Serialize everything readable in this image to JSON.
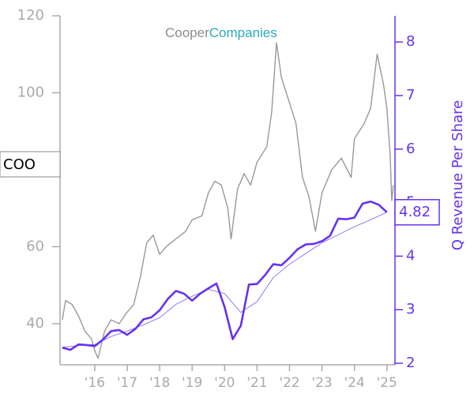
{
  "chart_data": {
    "type": "line",
    "logo": [
      "Cooper",
      "Companies"
    ],
    "annotation": "COO",
    "y2label": "Q Revenue Per Share",
    "xlim": [
      2014.93,
      2025.25
    ],
    "xticks": [
      {
        "value": 2016,
        "label": "'16"
      },
      {
        "value": 2017,
        "label": "'17"
      },
      {
        "value": 2018,
        "label": "'18"
      },
      {
        "value": 2019,
        "label": "'19"
      },
      {
        "value": 2020,
        "label": "'20"
      },
      {
        "value": 2021,
        "label": "'21"
      },
      {
        "value": 2022,
        "label": "'22"
      },
      {
        "value": 2023,
        "label": "'23"
      },
      {
        "value": 2024,
        "label": "'24"
      },
      {
        "value": 2025,
        "label": "'25"
      }
    ],
    "ylim": [
      29.3,
      120
    ],
    "yticks": [
      40,
      60,
      100,
      120
    ],
    "y2lim": [
      1.97,
      8.49
    ],
    "y2ticks": [
      2,
      3,
      4,
      5,
      6,
      7,
      8
    ],
    "series": [
      {
        "color": "#999999",
        "x": [
          2015.0,
          2015.1,
          2015.3,
          2015.5,
          2015.7,
          2015.9,
          2016.0,
          2016.1,
          2016.3,
          2016.5,
          2016.75,
          2017.0,
          2017.2,
          2017.4,
          2017.6,
          2017.8,
          2018.0,
          2018.2,
          2018.5,
          2018.8,
          2019.0,
          2019.3,
          2019.5,
          2019.7,
          2019.9,
          2020.1,
          2020.2,
          2020.4,
          2020.6,
          2020.8,
          2021.0,
          2021.3,
          2021.45,
          2021.6,
          2021.75,
          2021.9,
          2022.2,
          2022.4,
          2022.6,
          2022.8,
          2023.0,
          2023.3,
          2023.6,
          2023.9,
          2024.0,
          2024.3,
          2024.5,
          2024.7,
          2024.9,
          2025.0,
          2025.1,
          2025.15,
          2025.2
        ],
        "values": [
          41,
          46,
          45,
          42,
          38,
          36,
          33,
          31,
          38,
          41,
          40,
          43,
          45,
          52,
          61,
          63,
          58,
          60,
          62,
          64,
          67,
          68,
          74,
          77,
          76,
          70,
          62,
          75,
          79,
          76,
          82,
          86,
          95,
          113,
          104,
          100,
          92,
          78,
          73,
          64,
          74,
          80,
          83,
          78,
          88,
          92,
          96,
          110,
          102,
          96,
          84,
          72,
          76
        ]
      },
      {
        "color": "#7a5cf0",
        "axis": "y2",
        "x": [
          2015.0,
          2015.5,
          2016.0,
          2016.5,
          2017.0,
          2017.5,
          2018.0,
          2018.5,
          2019.0,
          2019.5,
          2020.0,
          2020.5,
          2021.0,
          2021.5,
          2022.0,
          2022.5,
          2023.0,
          2023.5,
          2024.0,
          2024.5,
          2025.0
        ],
        "values": [
          2.3,
          2.33,
          2.35,
          2.5,
          2.6,
          2.72,
          2.85,
          3.1,
          3.25,
          3.38,
          3.3,
          2.95,
          3.15,
          3.6,
          3.85,
          4.05,
          4.25,
          4.4,
          4.55,
          4.68,
          4.82
        ]
      },
      {
        "color": "#6633ee",
        "axis": "y2",
        "x": [
          2015.0,
          2015.25,
          2015.5,
          2015.75,
          2016.0,
          2016.25,
          2016.5,
          2016.75,
          2017.0,
          2017.25,
          2017.5,
          2017.75,
          2018.0,
          2018.25,
          2018.5,
          2018.75,
          2019.0,
          2019.25,
          2019.5,
          2019.75,
          2020.0,
          2020.25,
          2020.5,
          2020.75,
          2021.0,
          2021.25,
          2021.5,
          2021.75,
          2022.0,
          2022.25,
          2022.5,
          2022.75,
          2023.0,
          2023.25,
          2023.5,
          2023.75,
          2024.0,
          2024.25,
          2024.5,
          2024.75,
          2025.0
        ],
        "values": [
          2.29,
          2.25,
          2.35,
          2.34,
          2.32,
          2.44,
          2.6,
          2.62,
          2.53,
          2.64,
          2.82,
          2.86,
          2.99,
          3.2,
          3.35,
          3.3,
          3.17,
          3.3,
          3.4,
          3.49,
          3.05,
          2.45,
          2.7,
          3.47,
          3.48,
          3.65,
          3.85,
          3.83,
          3.97,
          4.13,
          4.22,
          4.23,
          4.28,
          4.38,
          4.7,
          4.69,
          4.72,
          4.98,
          5.02,
          4.96,
          4.82
        ]
      }
    ]
  }
}
